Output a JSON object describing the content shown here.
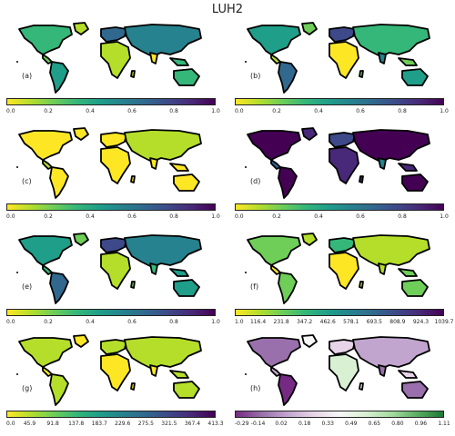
{
  "title": "LUH2",
  "panels": [
    {
      "id": "a",
      "label": "(a)",
      "cmap": "viridis_r",
      "fill": "mixed",
      "ticks": [
        "0.0",
        "0.2",
        "0.4",
        "0.6",
        "0.8",
        "1.0"
      ]
    },
    {
      "id": "b",
      "label": "(b)",
      "cmap": "viridis_r",
      "fill": "mixed_b",
      "ticks": [
        "0.0",
        "0.2",
        "0.4",
        "0.6",
        "0.8",
        "1.0"
      ]
    },
    {
      "id": "c",
      "label": "(c)",
      "cmap": "viridis_r",
      "fill": "light",
      "ticks": [
        "0.0",
        "0.2",
        "0.4",
        "0.6",
        "0.8",
        "1.0"
      ]
    },
    {
      "id": "d",
      "label": "(d)",
      "cmap": "viridis_r",
      "fill": "dark",
      "ticks": [
        "0.0",
        "0.2",
        "0.4",
        "0.6",
        "0.8",
        "1.0"
      ]
    },
    {
      "id": "e",
      "label": "(e)",
      "cmap": "viridis_r",
      "fill": "green_mixed",
      "ticks": [
        "0.0",
        "0.2",
        "0.4",
        "0.6",
        "0.8",
        "1.0"
      ]
    },
    {
      "id": "f",
      "label": "(f)",
      "cmap": "viridis_r",
      "fill": "yellow_green",
      "ticks": [
        "1.0",
        "116.4",
        "231.8",
        "347.2",
        "462.6",
        "578.1",
        "693.5",
        "808.9",
        "924.3",
        "1039.7"
      ]
    },
    {
      "id": "g",
      "label": "(g)",
      "cmap": "viridis_r",
      "fill": "yellow",
      "ticks": [
        "0.0",
        "45.9",
        "91.8",
        "137.8",
        "183.7",
        "229.6",
        "275.5",
        "321.5",
        "367.4",
        "413.3"
      ]
    },
    {
      "id": "h",
      "label": "(h)",
      "cmap": "PRGn",
      "fill": "diverging",
      "ticks": [
        "-0.29",
        "-0.14",
        "0.02",
        "0.18",
        "0.33",
        "0.49",
        "0.65",
        "0.80",
        "0.96",
        "1.11"
      ]
    }
  ],
  "colors": {
    "viridis_r": [
      "#fde725",
      "#b5de2b",
      "#6ece58",
      "#35b779",
      "#1f9e89",
      "#26828e",
      "#31688e",
      "#3e4989",
      "#482878",
      "#440154"
    ],
    "PRGn": [
      "#762a83",
      "#9970ab",
      "#c2a5cf",
      "#e7d4e8",
      "#f7f7f7",
      "#d9f0d3",
      "#a6dba0",
      "#5aae61",
      "#1b7837"
    ],
    "outline": "#000000"
  }
}
